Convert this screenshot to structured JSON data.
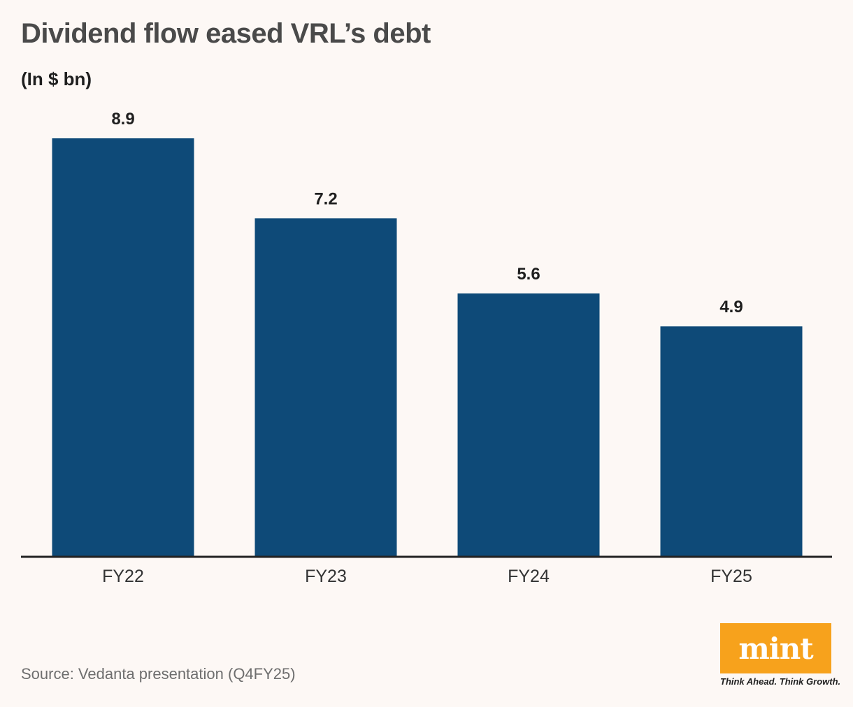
{
  "header": {
    "title": "Dividend flow eased VRL’s debt",
    "subtitle": "(In $ bn)"
  },
  "footer": {
    "source": "Source: Vedanta presentation (Q4FY25)"
  },
  "branding": {
    "logo_text": "mint",
    "tagline": "Think Ahead. Think Growth.",
    "logo_color": "#f7a21c"
  },
  "colors": {
    "bar": "#0e4a78",
    "axis": "#222222",
    "label": "#1f1f1f",
    "tick": "#333333"
  },
  "chart_data": {
    "type": "bar",
    "categories": [
      "FY22",
      "FY23",
      "FY24",
      "FY25"
    ],
    "values": [
      8.9,
      7.2,
      5.6,
      4.9
    ],
    "title": "Dividend flow eased VRL’s debt",
    "subtitle": "(In $ bn)",
    "data_labels": [
      "8.9",
      "7.2",
      "5.6",
      "4.9"
    ],
    "ylim": [
      0,
      8.9
    ],
    "grid": false,
    "legend": "none"
  }
}
